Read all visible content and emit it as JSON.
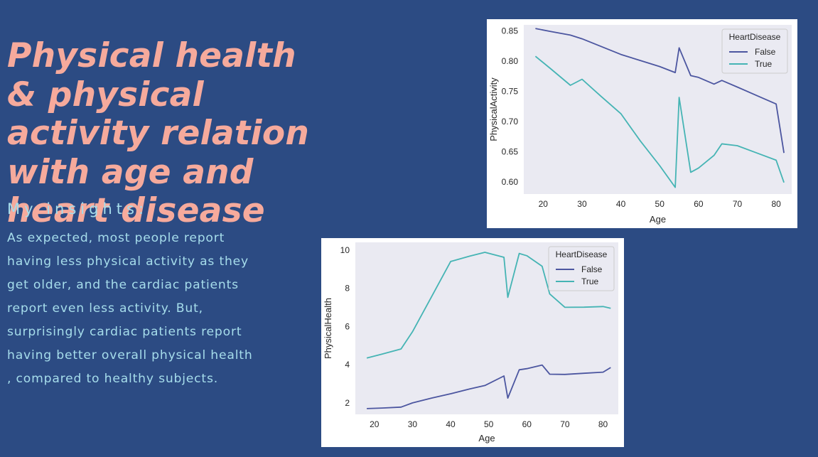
{
  "slide": {
    "title": "Physical health & physical activity relation with age and heart disease",
    "subtitle": "My insights:",
    "body": "As expected, most people report having less physical activity as they get older, and the cardiac patients report even less activity. But, surprisingly cardiac patients report having better overall physical health , compared to healthy subjects."
  },
  "colors": {
    "background": "#2c4b83",
    "title": "#f6aa9c",
    "text": "#a6ddeb",
    "plot_bg": "#eaeaf2",
    "series_false": "#4c56a0",
    "series_true": "#45b4b4"
  },
  "chart_data": [
    {
      "type": "line",
      "xlabel": "Age",
      "ylabel": "PhysicalActivity",
      "xlim": [
        15,
        84
      ],
      "ylim": [
        0.58,
        0.86
      ],
      "xticks": [
        20,
        30,
        40,
        50,
        60,
        70,
        80
      ],
      "yticks": [
        0.6,
        0.65,
        0.7,
        0.75,
        0.8,
        0.85
      ],
      "ytick_decimals": 2,
      "grid": false,
      "legend": {
        "title": "HeartDisease",
        "position": "top-right"
      },
      "series": [
        {
          "name": "False",
          "color": "#4c56a0",
          "x": [
            18,
            22,
            27,
            30,
            35,
            40,
            45,
            50,
            54,
            55,
            58,
            60,
            64,
            66,
            70,
            75,
            80,
            82
          ],
          "y": [
            0.854,
            0.849,
            0.843,
            0.837,
            0.824,
            0.811,
            0.801,
            0.791,
            0.781,
            0.822,
            0.776,
            0.773,
            0.762,
            0.768,
            0.757,
            0.743,
            0.729,
            0.648
          ]
        },
        {
          "name": "True",
          "color": "#45b4b4",
          "x": [
            18,
            22,
            27,
            30,
            35,
            40,
            45,
            50,
            54,
            55,
            58,
            60,
            64,
            66,
            70,
            75,
            80,
            82
          ],
          "y": [
            0.808,
            0.787,
            0.76,
            0.77,
            0.741,
            0.713,
            0.668,
            0.627,
            0.591,
            0.74,
            0.616,
            0.623,
            0.644,
            0.663,
            0.66,
            0.648,
            0.636,
            0.599
          ]
        }
      ]
    },
    {
      "type": "line",
      "xlabel": "Age",
      "ylabel": "PhysicalHealth",
      "xlim": [
        15,
        84
      ],
      "ylim": [
        1.4,
        10.4
      ],
      "xticks": [
        20,
        30,
        40,
        50,
        60,
        70,
        80
      ],
      "yticks": [
        2,
        4,
        6,
        8,
        10
      ],
      "ytick_decimals": 0,
      "grid": false,
      "legend": {
        "title": "HeartDisease",
        "position": "top-right"
      },
      "series": [
        {
          "name": "False",
          "color": "#4c56a0",
          "x": [
            18,
            22,
            27,
            30,
            35,
            40,
            45,
            49,
            54,
            55,
            58,
            60,
            64,
            66,
            70,
            75,
            80,
            82
          ],
          "y": [
            1.7,
            1.73,
            1.78,
            2.0,
            2.25,
            2.48,
            2.73,
            2.91,
            3.41,
            2.25,
            3.73,
            3.79,
            3.98,
            3.5,
            3.49,
            3.55,
            3.61,
            3.85
          ]
        },
        {
          "name": "True",
          "color": "#45b4b4",
          "x": [
            18,
            22,
            27,
            30,
            35,
            40,
            45,
            49,
            54,
            55,
            58,
            60,
            64,
            66,
            70,
            75,
            80,
            82
          ],
          "y": [
            4.35,
            4.55,
            4.82,
            5.72,
            7.55,
            9.4,
            9.68,
            9.88,
            9.62,
            7.52,
            9.82,
            9.7,
            9.15,
            7.7,
            7.0,
            7.01,
            7.04,
            6.95
          ]
        }
      ]
    }
  ]
}
